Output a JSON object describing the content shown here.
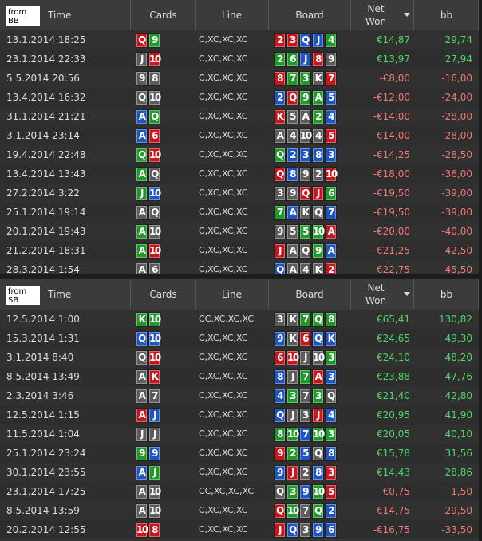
{
  "tables": [
    {
      "label": "from BB",
      "headers": [
        "Time",
        "Cards",
        "Line",
        "Board",
        "Net Won",
        "bb"
      ],
      "rows": [
        {
          "time": "13.1.2014 18:25",
          "cards": [
            [
              "Q",
              "r"
            ],
            [
              "9",
              "g"
            ]
          ],
          "line": "C,XC,XC,XC",
          "board": [
            [
              "2",
              "r"
            ],
            [
              "3",
              "r"
            ],
            [
              "Q",
              "b"
            ],
            [
              "J",
              "b"
            ],
            [
              "4",
              "g"
            ]
          ],
          "net": "€14,87",
          "bb": "29,74"
        },
        {
          "time": "23.1.2014 22:33",
          "cards": [
            [
              "J",
              "k"
            ],
            [
              "10",
              "r"
            ]
          ],
          "line": "C,XC,XC,XC",
          "board": [
            [
              "2",
              "g"
            ],
            [
              "6",
              "g"
            ],
            [
              "J",
              "b"
            ],
            [
              "8",
              "r"
            ],
            [
              "9",
              "k"
            ]
          ],
          "net": "€13,97",
          "bb": "27,94"
        },
        {
          "time": "5.5.2014 20:56",
          "cards": [
            [
              "9",
              "k"
            ],
            [
              "8",
              "k"
            ]
          ],
          "line": "C,XC,XC,XC",
          "board": [
            [
              "8",
              "r"
            ],
            [
              "7",
              "g"
            ],
            [
              "3",
              "g"
            ],
            [
              "K",
              "k"
            ],
            [
              "7",
              "r"
            ]
          ],
          "net": "-€8,00",
          "bb": "-16,00"
        },
        {
          "time": "13.4.2014 16:32",
          "cards": [
            [
              "Q",
              "k"
            ],
            [
              "10",
              "k"
            ]
          ],
          "line": "C,XC,XC,XC",
          "board": [
            [
              "2",
              "b"
            ],
            [
              "Q",
              "r"
            ],
            [
              "9",
              "g"
            ],
            [
              "A",
              "g"
            ],
            [
              "5",
              "b"
            ]
          ],
          "net": "-€12,00",
          "bb": "-24,00"
        },
        {
          "time": "31.1.2014 21:21",
          "cards": [
            [
              "A",
              "b"
            ],
            [
              "Q",
              "g"
            ]
          ],
          "line": "C,XC,XC,XC",
          "board": [
            [
              "K",
              "r"
            ],
            [
              "5",
              "k"
            ],
            [
              "A",
              "k"
            ],
            [
              "2",
              "g"
            ],
            [
              "4",
              "b"
            ]
          ],
          "net": "-€14,00",
          "bb": "-28,00"
        },
        {
          "time": "3.1.2014 23:14",
          "cards": [
            [
              "A",
              "b"
            ],
            [
              "6",
              "r"
            ]
          ],
          "line": "C,XC,XC,XC",
          "board": [
            [
              "A",
              "k"
            ],
            [
              "4",
              "k"
            ],
            [
              "10",
              "k"
            ],
            [
              "4",
              "k"
            ],
            [
              "5",
              "r"
            ]
          ],
          "net": "-€14,00",
          "bb": "-28,00"
        },
        {
          "time": "19.4.2014 22:48",
          "cards": [
            [
              "Q",
              "g"
            ],
            [
              "10",
              "r"
            ]
          ],
          "line": "C,XC,XC,XC",
          "board": [
            [
              "Q",
              "g"
            ],
            [
              "2",
              "b"
            ],
            [
              "3",
              "b"
            ],
            [
              "8",
              "b"
            ],
            [
              "3",
              "b"
            ]
          ],
          "net": "-€14,25",
          "bb": "-28,50"
        },
        {
          "time": "13.4.2014 13:43",
          "cards": [
            [
              "A",
              "g"
            ],
            [
              "Q",
              "k"
            ]
          ],
          "line": "C,XC,XC,XC",
          "board": [
            [
              "Q",
              "r"
            ],
            [
              "8",
              "b"
            ],
            [
              "9",
              "k"
            ],
            [
              "2",
              "k"
            ],
            [
              "10",
              "r"
            ]
          ],
          "net": "-€18,00",
          "bb": "-36,00"
        },
        {
          "time": "27.2.2014 3:22",
          "cards": [
            [
              "J",
              "g"
            ],
            [
              "10",
              "b"
            ]
          ],
          "line": "C,XC,XC,XC",
          "board": [
            [
              "3",
              "k"
            ],
            [
              "9",
              "k"
            ],
            [
              "Q",
              "r"
            ],
            [
              "J",
              "r"
            ],
            [
              "6",
              "g"
            ]
          ],
          "net": "-€19,50",
          "bb": "-39,00"
        },
        {
          "time": "25.1.2014 19:14",
          "cards": [
            [
              "A",
              "k"
            ],
            [
              "Q",
              "k"
            ]
          ],
          "line": "C,XC,XC,XC",
          "board": [
            [
              "7",
              "g"
            ],
            [
              "A",
              "b"
            ],
            [
              "K",
              "k"
            ],
            [
              "Q",
              "k"
            ],
            [
              "7",
              "b"
            ]
          ],
          "net": "-€19,50",
          "bb": "-39,00"
        },
        {
          "time": "20.1.2014 19:43",
          "cards": [
            [
              "A",
              "g"
            ],
            [
              "10",
              "k"
            ]
          ],
          "line": "C,XC,XC,XC",
          "board": [
            [
              "9",
              "k"
            ],
            [
              "5",
              "k"
            ],
            [
              "5",
              "g"
            ],
            [
              "10",
              "g"
            ],
            [
              "A",
              "r"
            ]
          ],
          "net": "-€20,00",
          "bb": "-40,00"
        },
        {
          "time": "21.2.2014 18:31",
          "cards": [
            [
              "A",
              "g"
            ],
            [
              "10",
              "r"
            ]
          ],
          "line": "C,XC,XC,XC",
          "board": [
            [
              "J",
              "r"
            ],
            [
              "A",
              "k"
            ],
            [
              "Q",
              "k"
            ],
            [
              "9",
              "g"
            ],
            [
              "A",
              "b"
            ]
          ],
          "net": "-€21,25",
          "bb": "-42,50"
        },
        {
          "time": "28.3.2014 1:54",
          "cards": [
            [
              "A",
              "k"
            ],
            [
              "6",
              "k"
            ]
          ],
          "line": "C,XC,XC,XC",
          "board": [
            [
              "Q",
              "b"
            ],
            [
              "A",
              "k"
            ],
            [
              "4",
              "k"
            ],
            [
              "K",
              "k"
            ],
            [
              "2",
              "r"
            ]
          ],
          "net": "-€22,75",
          "bb": "-45,50"
        }
      ]
    },
    {
      "label": "from SB",
      "headers": [
        "Time",
        "Cards",
        "Line",
        "Board",
        "Net Won",
        "bb"
      ],
      "rows": [
        {
          "time": "12.5.2014 1:00",
          "cards": [
            [
              "K",
              "g"
            ],
            [
              "10",
              "g"
            ]
          ],
          "line": "CC,XC,XC,XC",
          "board": [
            [
              "3",
              "k"
            ],
            [
              "K",
              "k"
            ],
            [
              "7",
              "g"
            ],
            [
              "Q",
              "g"
            ],
            [
              "8",
              "g"
            ]
          ],
          "net": "€65,41",
          "bb": "130,82"
        },
        {
          "time": "15.3.2014 1:31",
          "cards": [
            [
              "Q",
              "b"
            ],
            [
              "10",
              "b"
            ]
          ],
          "line": "C,XC,XC,XC",
          "board": [
            [
              "9",
              "b"
            ],
            [
              "K",
              "k"
            ],
            [
              "6",
              "r"
            ],
            [
              "Q",
              "b"
            ],
            [
              "K",
              "b"
            ]
          ],
          "net": "€24,65",
          "bb": "49,30"
        },
        {
          "time": "3.1.2014 8:40",
          "cards": [
            [
              "Q",
              "k"
            ],
            [
              "10",
              "r"
            ]
          ],
          "line": "C,XC,XC,XC",
          "board": [
            [
              "6",
              "r"
            ],
            [
              "10",
              "r"
            ],
            [
              "J",
              "k"
            ],
            [
              "10",
              "k"
            ],
            [
              "3",
              "g"
            ]
          ],
          "net": "€24,10",
          "bb": "48,20"
        },
        {
          "time": "8.5.2014 13:49",
          "cards": [
            [
              "A",
              "k"
            ],
            [
              "K",
              "r"
            ]
          ],
          "line": "C,XC,XC,XC",
          "board": [
            [
              "8",
              "b"
            ],
            [
              "J",
              "k"
            ],
            [
              "7",
              "g"
            ],
            [
              "A",
              "r"
            ],
            [
              "3",
              "b"
            ]
          ],
          "net": "€23,88",
          "bb": "47,76"
        },
        {
          "time": "2.3.2014 3:46",
          "cards": [
            [
              "A",
              "k"
            ],
            [
              "7",
              "k"
            ]
          ],
          "line": "C,XC,XC,XC",
          "board": [
            [
              "4",
              "b"
            ],
            [
              "3",
              "g"
            ],
            [
              "7",
              "k"
            ],
            [
              "3",
              "g"
            ],
            [
              "Q",
              "k"
            ]
          ],
          "net": "€21,40",
          "bb": "42,80"
        },
        {
          "time": "12.5.2014 1:15",
          "cards": [
            [
              "A",
              "r"
            ],
            [
              "J",
              "b"
            ]
          ],
          "line": "C,XC,XC,XC",
          "board": [
            [
              "Q",
              "b"
            ],
            [
              "J",
              "k"
            ],
            [
              "3",
              "k"
            ],
            [
              "J",
              "r"
            ],
            [
              "4",
              "b"
            ]
          ],
          "net": "€20,95",
          "bb": "41,90"
        },
        {
          "time": "11.5.2014 1:04",
          "cards": [
            [
              "J",
              "k"
            ],
            [
              "J",
              "k"
            ]
          ],
          "line": "C,XC,XC,XC",
          "board": [
            [
              "8",
              "g"
            ],
            [
              "10",
              "g"
            ],
            [
              "7",
              "b"
            ],
            [
              "10",
              "g"
            ],
            [
              "3",
              "g"
            ]
          ],
          "net": "€20,05",
          "bb": "40,10"
        },
        {
          "time": "25.1.2014 23:24",
          "cards": [
            [
              "9",
              "g"
            ],
            [
              "9",
              "b"
            ]
          ],
          "line": "C,XC,XC,XC",
          "board": [
            [
              "9",
              "r"
            ],
            [
              "2",
              "g"
            ],
            [
              "5",
              "b"
            ],
            [
              "Q",
              "k"
            ],
            [
              "8",
              "b"
            ]
          ],
          "net": "€15,78",
          "bb": "31,56"
        },
        {
          "time": "30.1.2014 23:55",
          "cards": [
            [
              "A",
              "b"
            ],
            [
              "J",
              "g"
            ]
          ],
          "line": "C,XC,XC,XC",
          "board": [
            [
              "9",
              "b"
            ],
            [
              "J",
              "r"
            ],
            [
              "2",
              "k"
            ],
            [
              "8",
              "b"
            ],
            [
              "3",
              "r"
            ]
          ],
          "net": "€14,43",
          "bb": "28,86"
        },
        {
          "time": "23.1.2014 17:25",
          "cards": [
            [
              "A",
              "k"
            ],
            [
              "10",
              "k"
            ]
          ],
          "line": "CC,XC,XC,XC",
          "board": [
            [
              "Q",
              "k"
            ],
            [
              "3",
              "g"
            ],
            [
              "9",
              "b"
            ],
            [
              "10",
              "g"
            ],
            [
              "5",
              "r"
            ]
          ],
          "net": "-€0,75",
          "bb": "-1,50"
        },
        {
          "time": "8.5.2014 13:59",
          "cards": [
            [
              "A",
              "k"
            ],
            [
              "10",
              "k"
            ]
          ],
          "line": "C,XC,XC,XC",
          "board": [
            [
              "Q",
              "r"
            ],
            [
              "10",
              "g"
            ],
            [
              "7",
              "k"
            ],
            [
              "Q",
              "g"
            ],
            [
              "2",
              "b"
            ]
          ],
          "net": "-€14,75",
          "bb": "-29,50"
        },
        {
          "time": "20.2.2014 12:55",
          "cards": [
            [
              "10",
              "r"
            ],
            [
              "8",
              "r"
            ]
          ],
          "line": "C,XC,XC,XC",
          "board": [
            [
              "J",
              "r"
            ],
            [
              "Q",
              "b"
            ],
            [
              "3",
              "k"
            ],
            [
              "9",
              "b"
            ],
            [
              "6",
              "b"
            ]
          ],
          "net": "-€16,75",
          "bb": "-33,50"
        }
      ]
    }
  ]
}
